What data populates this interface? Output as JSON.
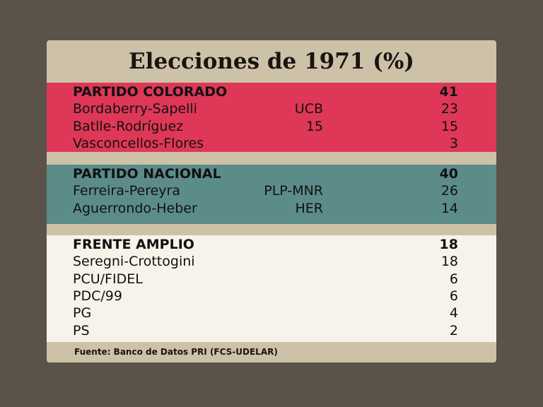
{
  "title": "Elecciones de 1971 (%)",
  "sections": [
    {
      "name": "PARTIDO COLORADO",
      "total": 41,
      "rows": [
        {
          "name": "Bordaberry-Sapelli",
          "list": "UCB",
          "value": 23
        },
        {
          "name": "Batlle-Rodríguez",
          "list": "15",
          "value": 15
        },
        {
          "name": "Vasconcellos-Flores",
          "value": 3
        }
      ]
    },
    {
      "name": "PARTIDO NACIONAL",
      "total": 40,
      "rows": [
        {
          "name": "Ferreira-Pereyra",
          "list": "PLP-MNR",
          "value": 26
        },
        {
          "name": "Aguerrondo-Heber",
          "list": "HER",
          "value": 14
        }
      ]
    },
    {
      "name": "FRENTE AMPLIO",
      "total": 18,
      "rows": [
        {
          "name": "Seregni-Crottogini",
          "value": 18
        },
        {
          "name": "PCU/FIDEL",
          "value": 6
        },
        {
          "name": "PDC/99",
          "value": 6
        },
        {
          "name": "PG",
          "value": 4
        },
        {
          "name": "PS",
          "value": 2
        }
      ]
    }
  ],
  "source": "Fuente: Banco de Datos PRI (FCS-UDELAR)"
}
